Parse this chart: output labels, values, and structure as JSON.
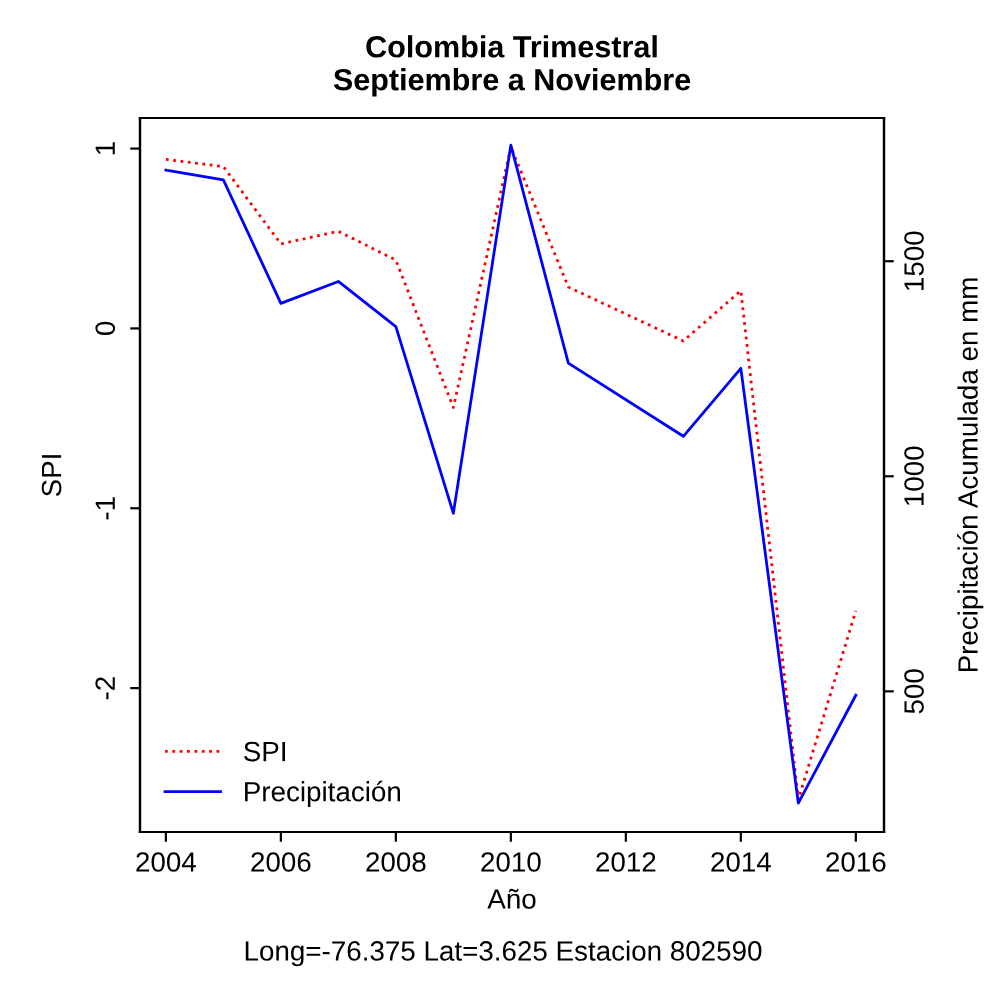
{
  "chart_data": {
    "type": "line",
    "title": "Colombia Trimestral\nSeptiembre a Noviembre",
    "xlabel": "Año",
    "ylabel": "SPI",
    "y2label": "Precipitación Acumulada en mm",
    "annotations": [
      "Long=-76.375 Lat=3.625 Estacion 802590"
    ],
    "x": [
      2004,
      2005,
      2006,
      2007,
      2008,
      2009,
      2010,
      2011,
      2013,
      2014,
      2015,
      2016
    ],
    "series": [
      {
        "name": "SPI",
        "color": "#ff0000",
        "line_style": "dotted",
        "values": [
          0.94,
          0.9,
          0.47,
          0.54,
          0.38,
          -0.44,
          1.01,
          0.23,
          -0.07,
          0.21,
          -2.62,
          -1.57
        ]
      },
      {
        "name": "Precipitación",
        "color": "#0000ff",
        "line_style": "solid",
        "axis": "y2",
        "values": [
          1712,
          1689,
          1402,
          1453,
          1348,
          914,
          1770,
          1263,
          1093,
          1251,
          240,
          491
        ]
      }
    ],
    "xlim": [
      2003.55,
      2016.49
    ],
    "xticks": [
      2004,
      2006,
      2008,
      2010,
      2012,
      2014,
      2016
    ],
    "ylim": [
      -2.8,
      1.17
    ],
    "yticks": [
      -2,
      -1,
      0,
      1
    ],
    "y2lim": [
      173,
      1833
    ],
    "y2ticks": [
      500,
      1000,
      1500
    ],
    "grid": false,
    "legend": "bottom left"
  }
}
